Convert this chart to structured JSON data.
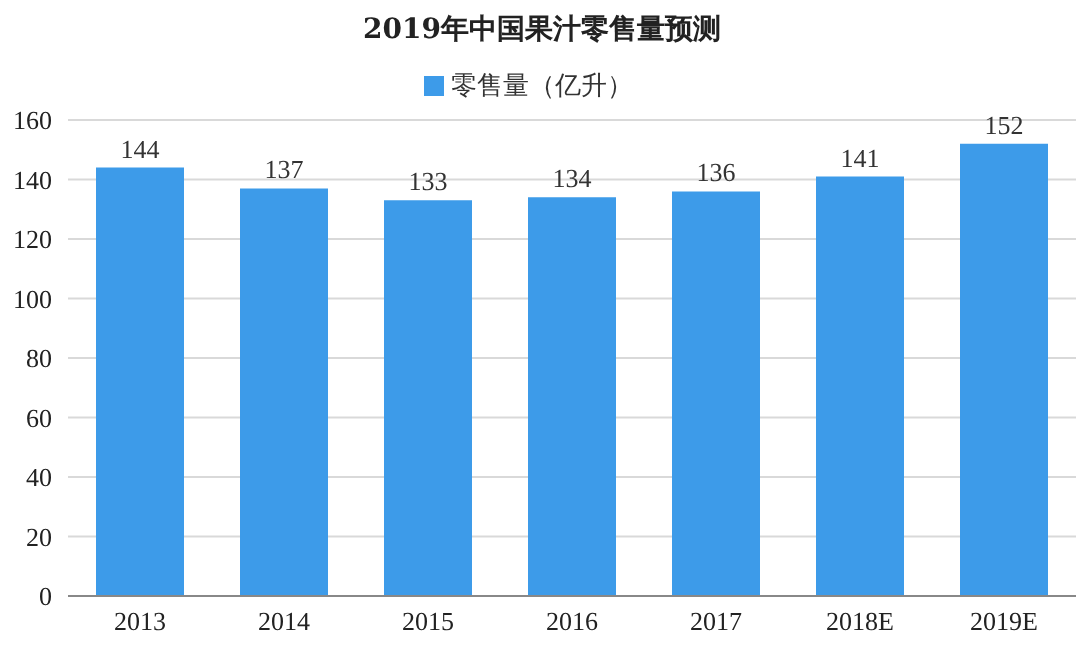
{
  "chart_data": {
    "type": "bar",
    "title": "2019年中国果汁零售量预测",
    "categories": [
      "2013",
      "2014",
      "2015",
      "2016",
      "2017",
      "2018E",
      "2019E"
    ],
    "series": [
      {
        "name": "零售量（亿升）",
        "color": "#3d9be9",
        "values": [
          144,
          137,
          133,
          134,
          136,
          141,
          152
        ]
      }
    ],
    "ylim": [
      0,
      160
    ],
    "yticks": [
      0,
      20,
      40,
      60,
      80,
      100,
      120,
      140,
      160
    ],
    "grid": "y",
    "legend": "top",
    "data_labels": true
  }
}
